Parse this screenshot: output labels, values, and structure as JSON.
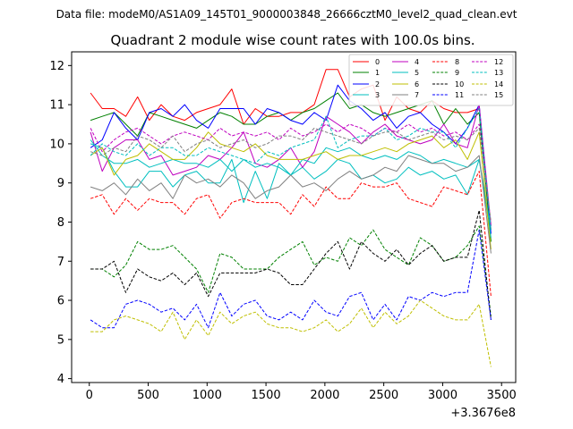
{
  "suptitle": "Data file: modeM0/AS1A09_145T01_9000003848_26666cztM0_level2_quad_clean.evt",
  "chart_data": {
    "type": "line",
    "title": "Quadrant 2 module wise count rates with 100.0s bins.",
    "xlabel": "",
    "ylabel": "",
    "x_offset_label": "+3.3676e8",
    "xlim": [
      -150,
      3620
    ],
    "ylim": [
      3.9,
      12.35
    ],
    "x_ticks": [
      0,
      500,
      1000,
      1500,
      2000,
      2500,
      3000,
      3500
    ],
    "y_ticks": [
      4,
      5,
      6,
      7,
      8,
      9,
      10,
      11,
      12
    ],
    "x": [
      10,
      110,
      210,
      310,
      410,
      510,
      610,
      710,
      810,
      910,
      1010,
      1110,
      1210,
      1310,
      1410,
      1510,
      1610,
      1710,
      1810,
      1910,
      2010,
      2110,
      2210,
      2310,
      2410,
      2510,
      2610,
      2710,
      2810,
      2910,
      3010,
      3110,
      3210,
      3310,
      3410
    ],
    "legend_position": "upper right",
    "legend_ncol": 4,
    "series": [
      {
        "name": "0",
        "color": "#ff0000",
        "dash": "solid",
        "values": [
          11.3,
          10.9,
          10.9,
          10.7,
          11.2,
          10.6,
          11.0,
          10.7,
          10.6,
          10.8,
          10.9,
          11.0,
          11.4,
          10.5,
          10.9,
          10.7,
          10.7,
          10.8,
          10.8,
          11.0,
          11.9,
          11.9,
          11.2,
          11.4,
          11.5,
          10.6,
          11.2,
          10.9,
          10.8,
          11.1,
          10.9,
          10.8,
          10.8,
          10.9,
          7.8
        ]
      },
      {
        "name": "1",
        "color": "#008000",
        "dash": "solid",
        "values": [
          10.6,
          10.7,
          10.8,
          10.5,
          10.2,
          10.8,
          10.7,
          10.6,
          10.5,
          10.4,
          10.6,
          10.8,
          10.7,
          10.5,
          10.5,
          10.7,
          10.8,
          10.6,
          10.8,
          10.9,
          11.1,
          11.3,
          10.9,
          11.0,
          10.8,
          10.7,
          10.8,
          10.9,
          11.0,
          11.1,
          10.5,
          10.9,
          10.5,
          10.8,
          7.5
        ]
      },
      {
        "name": "2",
        "color": "#0000ff",
        "dash": "solid",
        "values": [
          9.9,
          10.1,
          10.8,
          10.4,
          10.1,
          10.8,
          10.9,
          10.7,
          11.0,
          10.6,
          10.4,
          10.9,
          10.9,
          10.9,
          10.5,
          10.9,
          10.8,
          10.6,
          10.5,
          10.8,
          10.6,
          11.5,
          11.1,
          10.9,
          10.6,
          10.8,
          10.4,
          10.7,
          10.8,
          10.5,
          10.3,
          10.0,
          10.4,
          11.0,
          7.7
        ]
      },
      {
        "name": "3",
        "color": "#00bfbf",
        "dash": "solid",
        "values": [
          10.0,
          9.9,
          9.3,
          8.9,
          8.9,
          9.3,
          9.3,
          8.9,
          9.2,
          9.3,
          9.0,
          9.0,
          9.6,
          8.5,
          9.3,
          8.6,
          9.5,
          9.2,
          9.4,
          9.1,
          9.3,
          9.6,
          9.5,
          9.1,
          9.2,
          9.0,
          9.1,
          9.4,
          9.2,
          9.3,
          9.1,
          9.2,
          8.7,
          9.6,
          7.6
        ]
      },
      {
        "name": "4",
        "color": "#bf00bf",
        "dash": "solid",
        "values": [
          10.3,
          9.3,
          9.9,
          10.1,
          10.1,
          9.6,
          9.7,
          9.2,
          9.3,
          9.4,
          9.7,
          9.6,
          9.9,
          10.3,
          9.5,
          9.4,
          9.6,
          9.9,
          9.4,
          9.8,
          10.7,
          10.5,
          10.3,
          10.0,
          10.3,
          10.5,
          10.2,
          10.1,
          10.0,
          10.1,
          10.5,
          10.0,
          9.9,
          11.0,
          7.9
        ]
      },
      {
        "name": "5",
        "color": "#00bfbf",
        "dash": "solid",
        "values": [
          10.1,
          9.7,
          9.5,
          9.5,
          9.6,
          9.4,
          9.5,
          9.6,
          9.5,
          9.5,
          9.4,
          9.6,
          9.3,
          9.6,
          9.4,
          9.5,
          9.4,
          9.2,
          9.6,
          9.5,
          9.9,
          9.8,
          9.9,
          9.7,
          9.6,
          9.7,
          9.6,
          9.8,
          9.7,
          9.5,
          9.6,
          9.5,
          9.4,
          9.6,
          7.8
        ]
      },
      {
        "name": "6",
        "color": "#bfbf00",
        "dash": "solid",
        "values": [
          9.7,
          9.9,
          9.2,
          9.6,
          9.7,
          10.0,
          9.8,
          9.6,
          9.6,
          9.9,
          10.3,
          10.0,
          9.9,
          9.8,
          10.0,
          9.7,
          9.6,
          9.6,
          9.6,
          9.7,
          9.8,
          9.6,
          9.7,
          9.7,
          9.8,
          9.9,
          9.8,
          10.0,
          10.1,
          10.2,
          9.9,
          10.1,
          9.6,
          10.3,
          7.3
        ]
      },
      {
        "name": "7",
        "color": "#808080",
        "dash": "solid",
        "values": [
          8.9,
          8.8,
          9.0,
          8.7,
          9.1,
          8.8,
          9.0,
          8.6,
          9.2,
          9.0,
          9.1,
          8.9,
          9.2,
          9.0,
          8.6,
          8.8,
          8.9,
          9.2,
          8.9,
          9.0,
          8.8,
          9.1,
          9.3,
          9.1,
          9.2,
          9.4,
          9.3,
          9.7,
          9.6,
          9.5,
          9.5,
          9.3,
          9.4,
          9.7,
          7.2
        ]
      },
      {
        "name": "8",
        "color": "#ff0000",
        "dash": "dashed",
        "values": [
          8.6,
          8.7,
          8.2,
          8.6,
          8.3,
          8.6,
          8.5,
          8.5,
          8.2,
          8.6,
          8.7,
          8.1,
          8.5,
          8.6,
          8.5,
          8.5,
          8.5,
          8.2,
          8.7,
          8.4,
          8.9,
          8.6,
          8.6,
          9.0,
          8.9,
          8.9,
          9.0,
          8.6,
          8.5,
          8.4,
          8.9,
          8.8,
          8.7,
          9.3,
          6.1
        ]
      },
      {
        "name": "9",
        "color": "#008000",
        "dash": "dashed",
        "values": [
          6.8,
          6.8,
          6.6,
          6.9,
          7.5,
          7.3,
          7.3,
          7.4,
          7.1,
          6.8,
          6.2,
          7.2,
          7.1,
          6.8,
          6.8,
          6.8,
          7.1,
          7.3,
          7.5,
          6.9,
          7.1,
          7.0,
          7.6,
          7.4,
          7.8,
          7.3,
          7.1,
          6.9,
          7.6,
          7.4,
          7.0,
          7.1,
          7.4,
          7.9,
          5.6
        ]
      },
      {
        "name": "10",
        "color": "#000000",
        "dash": "dashed",
        "values": [
          6.8,
          6.8,
          7.0,
          6.2,
          6.8,
          6.6,
          6.5,
          6.7,
          6.4,
          6.7,
          6.1,
          6.7,
          6.7,
          6.7,
          6.7,
          6.8,
          6.7,
          6.4,
          6.4,
          6.8,
          7.2,
          7.5,
          6.8,
          7.5,
          7.2,
          7.0,
          7.3,
          6.9,
          7.2,
          7.4,
          7.0,
          7.1,
          7.1,
          8.3,
          5.5
        ]
      },
      {
        "name": "11",
        "color": "#0000ff",
        "dash": "dashed",
        "values": [
          5.5,
          5.3,
          5.3,
          5.9,
          6.0,
          5.9,
          5.7,
          5.8,
          5.5,
          5.9,
          5.3,
          6.2,
          5.6,
          5.9,
          6.0,
          5.6,
          5.5,
          5.7,
          5.5,
          6.0,
          5.7,
          5.6,
          6.1,
          6.2,
          5.5,
          5.9,
          5.5,
          6.1,
          6.0,
          6.2,
          6.1,
          6.2,
          6.2,
          7.8,
          5.5
        ]
      },
      {
        "name": "12",
        "color": "#bf00bf",
        "dash": "dashed",
        "values": [
          10.4,
          9.8,
          10.1,
          10.3,
          10.4,
          10.2,
          10.0,
          10.2,
          10.3,
          10.2,
          10.1,
          10.4,
          10.2,
          10.3,
          10.2,
          10.3,
          10.1,
          10.4,
          10.2,
          10.3,
          10.5,
          10.3,
          10.5,
          10.4,
          10.2,
          10.4,
          10.3,
          10.5,
          10.3,
          10.4,
          10.2,
          10.3,
          10.1,
          10.5,
          7.9
        ]
      },
      {
        "name": "13",
        "color": "#00bfbf",
        "dash": "dashed",
        "values": [
          9.7,
          10.0,
          9.8,
          9.7,
          10.0,
          9.7,
          9.9,
          9.9,
          9.7,
          9.7,
          9.9,
          9.8,
          9.7,
          9.6,
          9.5,
          9.8,
          9.7,
          9.9,
          10.0,
          10.1,
          10.7,
          9.9,
          10.1,
          10.2,
          10.2,
          10.4,
          10.1,
          10.2,
          10.4,
          10.3,
          10.3,
          9.9,
          10.4,
          10.9,
          7.8
        ]
      },
      {
        "name": "14",
        "color": "#bfbf00",
        "dash": "dashed",
        "values": [
          5.2,
          5.2,
          5.5,
          5.6,
          5.5,
          5.4,
          5.2,
          5.7,
          5.0,
          5.5,
          5.1,
          5.7,
          5.4,
          5.6,
          5.7,
          5.4,
          5.3,
          5.3,
          5.2,
          5.3,
          5.5,
          5.2,
          5.4,
          5.8,
          5.3,
          5.7,
          5.4,
          5.6,
          6.0,
          5.8,
          5.6,
          5.5,
          5.5,
          5.9,
          4.3
        ]
      },
      {
        "name": "15",
        "color": "#808080",
        "dash": "dashed",
        "values": [
          9.8,
          9.7,
          9.9,
          9.8,
          10.2,
          10.1,
          9.9,
          10.2,
          9.8,
          10.0,
          10.1,
          9.9,
          10.0,
          10.1,
          9.9,
          10.0,
          10.2,
          10.2,
          10.1,
          10.4,
          10.3,
          10.2,
          10.1,
          10.0,
          10.2,
          10.3,
          10.3,
          10.1,
          10.2,
          10.3,
          10.1,
          10.2,
          10.1,
          10.4,
          8.0
        ]
      }
    ]
  }
}
